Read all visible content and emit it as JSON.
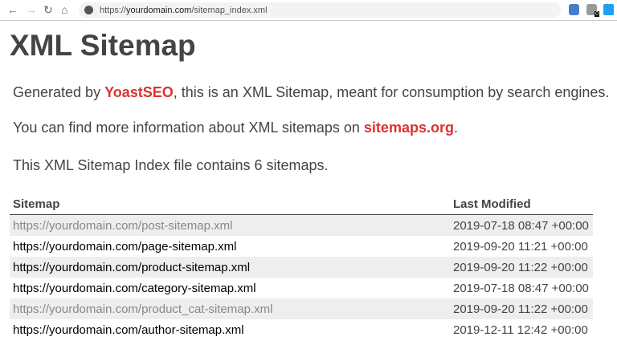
{
  "browser": {
    "url_prefix": "https://",
    "url_domain": "yourdomain.com",
    "url_path": "/sitemap_index.xml",
    "badge": "0"
  },
  "page": {
    "title": "XML Sitemap",
    "intro_before": "Generated by ",
    "intro_link": "YoastSEO",
    "intro_after": ", this is an XML Sitemap, meant for consumption by search engines.",
    "info_before": "You can find more information about XML sitemaps on ",
    "info_link": "sitemaps.org",
    "info_after": ".",
    "count_text": "This XML Sitemap Index file contains 6 sitemaps."
  },
  "table": {
    "headers": [
      "Sitemap",
      "Last Modified"
    ],
    "rows": [
      {
        "url": "https://yourdomain.com/post-sitemap.xml",
        "modified": "2019-07-18 08:47 +00:00",
        "visited": true
      },
      {
        "url": "https://yourdomain.com/page-sitemap.xml",
        "modified": "2019-09-20 11:21 +00:00",
        "visited": false
      },
      {
        "url": "https://yourdomain.com/product-sitemap.xml",
        "modified": "2019-09-20 11:22 +00:00",
        "visited": false
      },
      {
        "url": "https://yourdomain.com/category-sitemap.xml",
        "modified": "2019-07-18 08:47 +00:00",
        "visited": false
      },
      {
        "url": "https://yourdomain.com/product_cat-sitemap.xml",
        "modified": "2019-09-20 11:22 +00:00",
        "visited": true
      },
      {
        "url": "https://yourdomain.com/author-sitemap.xml",
        "modified": "2019-12-11 12:42 +00:00",
        "visited": false
      }
    ]
  },
  "colors": {
    "link_accent": "#dc3232",
    "row_alt": "#eeeeee",
    "visited": "#888888"
  }
}
